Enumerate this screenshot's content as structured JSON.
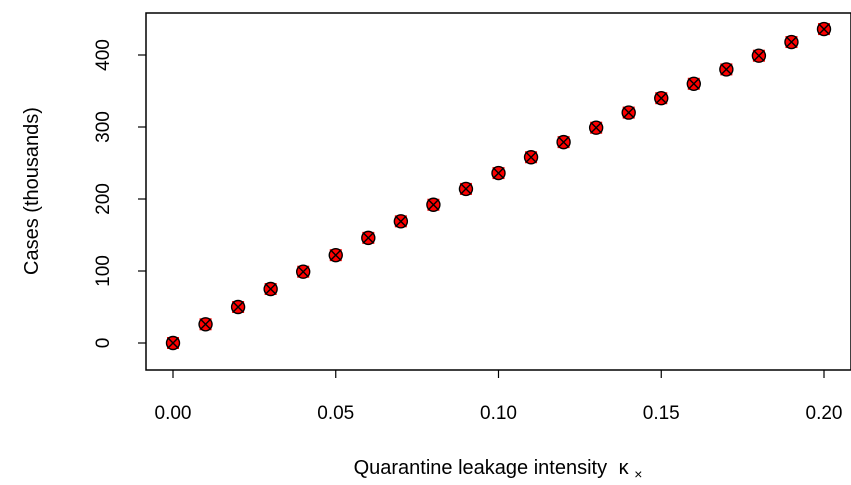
{
  "chart_data": {
    "type": "scatter",
    "xlabel": "Quarantine leakage intensity",
    "xlabel_symbol": "κ",
    "xlabel_subscript": "×",
    "ylabel": "Cases (thousands)",
    "xlim": [
      0.0,
      0.2
    ],
    "ylim": [
      0,
      435
    ],
    "x_ticks": [
      0.0,
      0.05,
      0.1,
      0.15,
      0.2
    ],
    "x_tick_labels": [
      "0.00",
      "0.05",
      "0.10",
      "0.15",
      "0.20"
    ],
    "y_ticks": [
      0,
      100,
      200,
      300,
      400
    ],
    "y_tick_labels": [
      "0",
      "100",
      "200",
      "300",
      "400"
    ],
    "grid": false,
    "series": [
      {
        "marker": "filled-square-red",
        "color": "#ff0000",
        "x": [
          0.0,
          0.01,
          0.02,
          0.03,
          0.04,
          0.05,
          0.06,
          0.07,
          0.08,
          0.09,
          0.1,
          0.11,
          0.12,
          0.13,
          0.14,
          0.15,
          0.16,
          0.17,
          0.18,
          0.19,
          0.2
        ],
        "y": [
          0,
          26,
          50,
          75,
          99,
          122,
          146,
          169,
          192,
          214,
          236,
          258,
          279,
          299,
          320,
          340,
          360,
          380,
          399,
          418,
          436
        ]
      },
      {
        "marker": "circle-cross-black",
        "color": "#000000",
        "x": [
          0.0,
          0.01,
          0.02,
          0.03,
          0.04,
          0.05,
          0.06,
          0.07,
          0.08,
          0.09,
          0.1,
          0.11,
          0.12,
          0.13,
          0.14,
          0.15,
          0.16,
          0.17,
          0.18,
          0.19,
          0.2
        ],
        "y": [
          0,
          26,
          50,
          75,
          99,
          122,
          146,
          169,
          192,
          214,
          236,
          258,
          279,
          299,
          320,
          340,
          360,
          380,
          399,
          418,
          436
        ]
      }
    ]
  }
}
